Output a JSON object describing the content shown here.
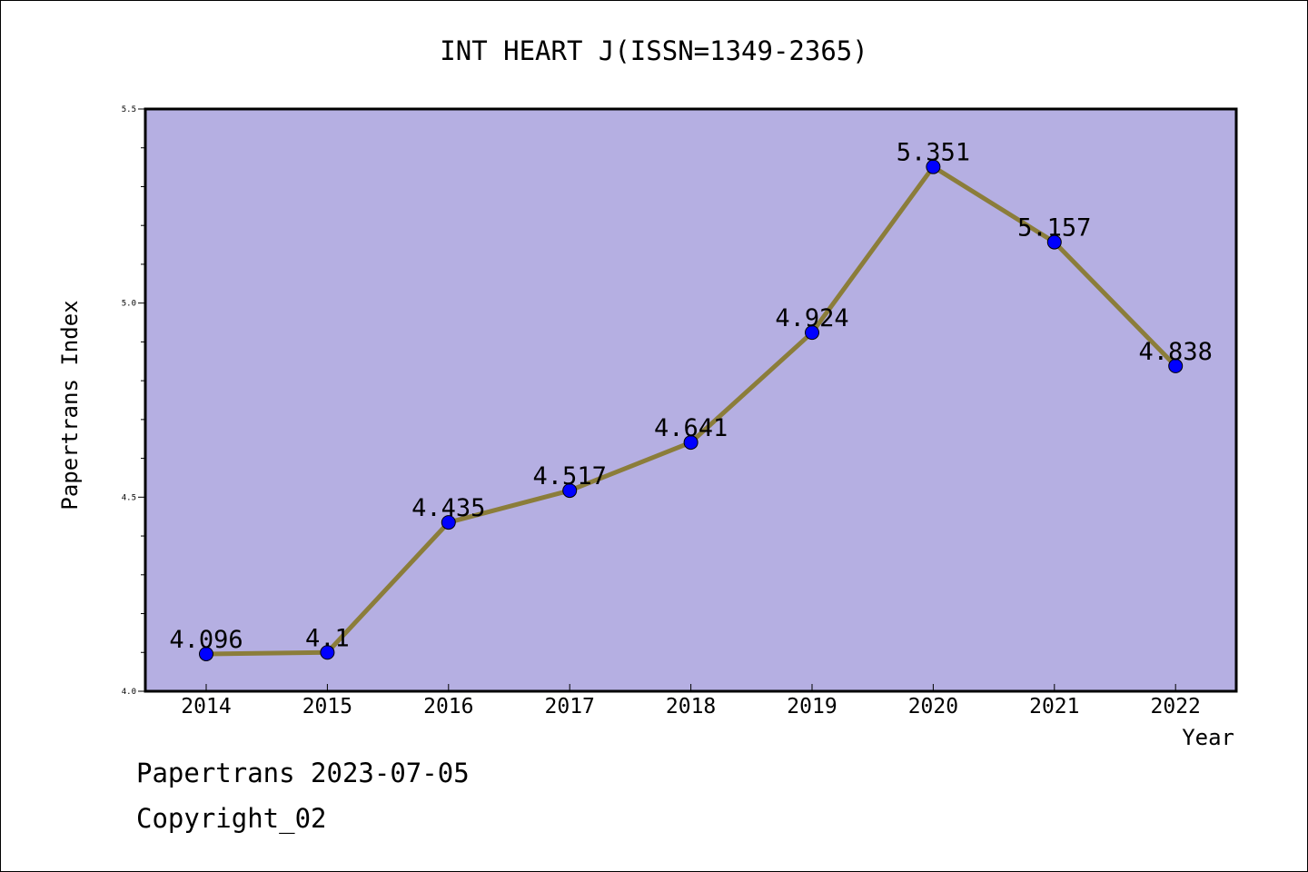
{
  "chart_data": {
    "type": "line",
    "title": "INT HEART J(ISSN=1349-2365)",
    "xlabel": "Year",
    "ylabel": "Papertrans Index",
    "categories": [
      "2014",
      "2015",
      "2016",
      "2017",
      "2018",
      "2019",
      "2020",
      "2021",
      "2022"
    ],
    "series": [
      {
        "values": [
          4.096,
          4.1,
          4.435,
          4.517,
          4.641,
          4.924,
          5.351,
          5.157,
          4.838
        ],
        "labels": [
          "4.096",
          "4.1",
          "4.435",
          "4.517",
          "4.641",
          "4.924",
          "5.351",
          "5.157",
          "4.838"
        ],
        "line_color": "#8b7d3a",
        "marker_color": "#0000ff"
      }
    ],
    "ylim": [
      4.0,
      5.5
    ],
    "yticks": [
      "4.0",
      "4.5",
      "5.0",
      "5.5"
    ],
    "plot_background": "#b5afe2",
    "grid": false
  },
  "footer": {
    "line1": "Papertrans 2023-07-05",
    "line2": "Copyright_02"
  }
}
